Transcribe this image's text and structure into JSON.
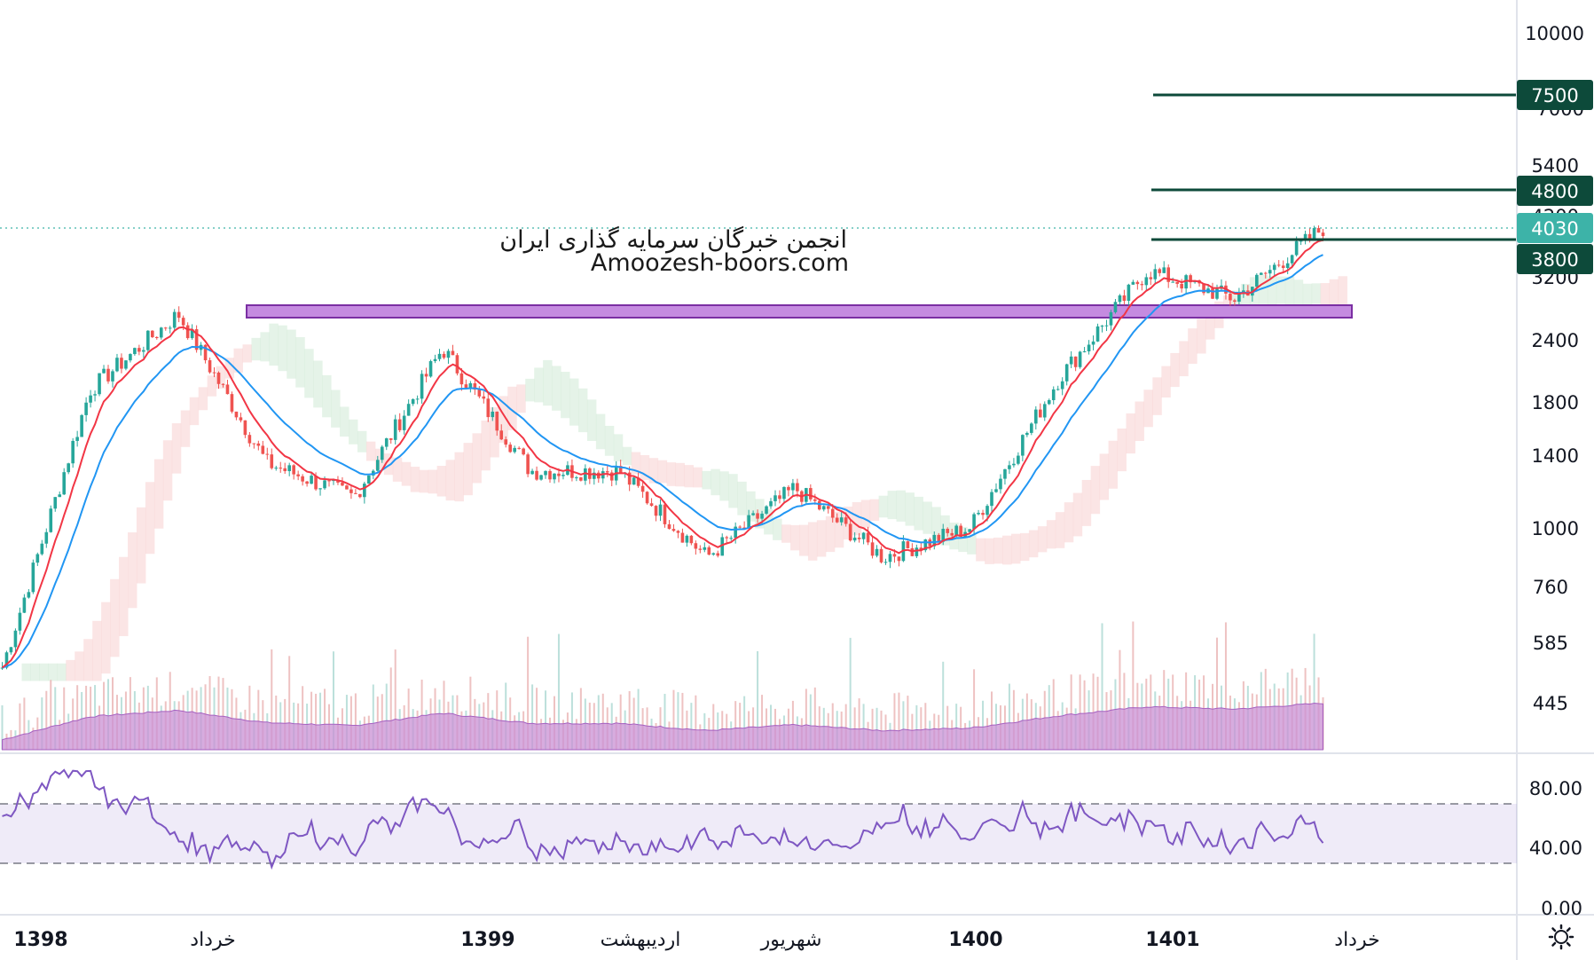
{
  "watermark": {
    "line1": "انجمن خبرگان سرمایه گذاری ایران",
    "line2": "Amoozesh-boors.com"
  },
  "price_axis": {
    "ticks": [
      "10000",
      "7000",
      "5400",
      "4200",
      "3200",
      "2400",
      "1800",
      "1400",
      "1000",
      "760",
      "585",
      "445"
    ]
  },
  "rsi_axis": {
    "ticks": [
      "80.00",
      "40.00",
      "0.00"
    ]
  },
  "time_axis": {
    "labels": [
      "1398",
      "خرداد",
      "1399",
      "اردیبهشت",
      "شهریور",
      "1400",
      "1401",
      "خرداد"
    ]
  },
  "levels": [
    {
      "value": "7500",
      "color": "#0d4a3a"
    },
    {
      "value": "4800",
      "color": "#0d4a3a"
    },
    {
      "value": "4030",
      "color": "#3db3a8"
    },
    {
      "value": "3800",
      "color": "#0d4a3a"
    }
  ],
  "colors": {
    "up": "#26a69a",
    "down": "#ef5350",
    "ema_fast": "#f23645",
    "ema_slow": "#2196f3",
    "rsi": "#7e57c2",
    "volume": "#c990d4",
    "zone": "#c58be0"
  },
  "chart_data": {
    "type": "line",
    "scale": "log",
    "panes": [
      "price",
      "volume",
      "rsi"
    ],
    "price": {
      "x": [
        "1398-01",
        "1398-03",
        "1398-06",
        "1398-09",
        "1399-01",
        "1399-02",
        "1399-04",
        "1399-06",
        "1399-09",
        "1400-01",
        "1400-04",
        "1400-07",
        "1400-10",
        "1401-01",
        "1401-02",
        "1401-03"
      ],
      "close": [
        520,
        1900,
        2700,
        1350,
        1150,
        2300,
        1300,
        1300,
        870,
        1200,
        870,
        1000,
        2000,
        3300,
        2900,
        4030
      ]
    },
    "resistance_zone": [
      2750,
      2950
    ],
    "horizontal_levels": [
      7500,
      4800,
      3800
    ],
    "last_price": 4030,
    "rsi": {
      "upper_band": 70,
      "lower_band": 30,
      "ylim": [
        0,
        100
      ],
      "last": 52
    },
    "grid": false
  },
  "settings": {
    "gear_icon": "gear-icon"
  }
}
